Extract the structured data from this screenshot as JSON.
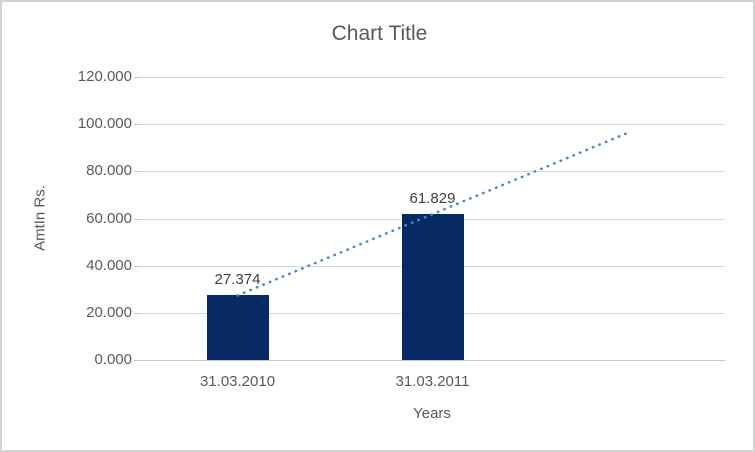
{
  "chart_data": {
    "type": "bar",
    "title": "Chart Title",
    "xlabel": "Years",
    "ylabel": "AmtIn Rs.",
    "categories": [
      "31.03.2010",
      "31.03.2011"
    ],
    "values": [
      27.374,
      61.829
    ],
    "data_labels": [
      "27.374",
      "61.829"
    ],
    "y_ticks": [
      "120.000",
      "100.000",
      "80.000",
      "60.000",
      "40.000",
      "20.000",
      "0.000"
    ],
    "ylim": [
      0,
      120
    ],
    "grid": true,
    "legend": "none",
    "colors": {
      "bar": "#082a64",
      "trendline": "#4e86c8",
      "gridline": "#d9d9d9",
      "axis_line": "#c6c6c6",
      "axis_text": "#595959",
      "data_label_text": "#404040",
      "title_text": "#595959",
      "background": "#ffffff",
      "border": "#d3d3d3"
    },
    "trendline": {
      "style": "dotted-linear",
      "start_value": 27.374,
      "end_value": 96.284,
      "spans_categories": "from first bar extended one period beyond last bar"
    }
  }
}
